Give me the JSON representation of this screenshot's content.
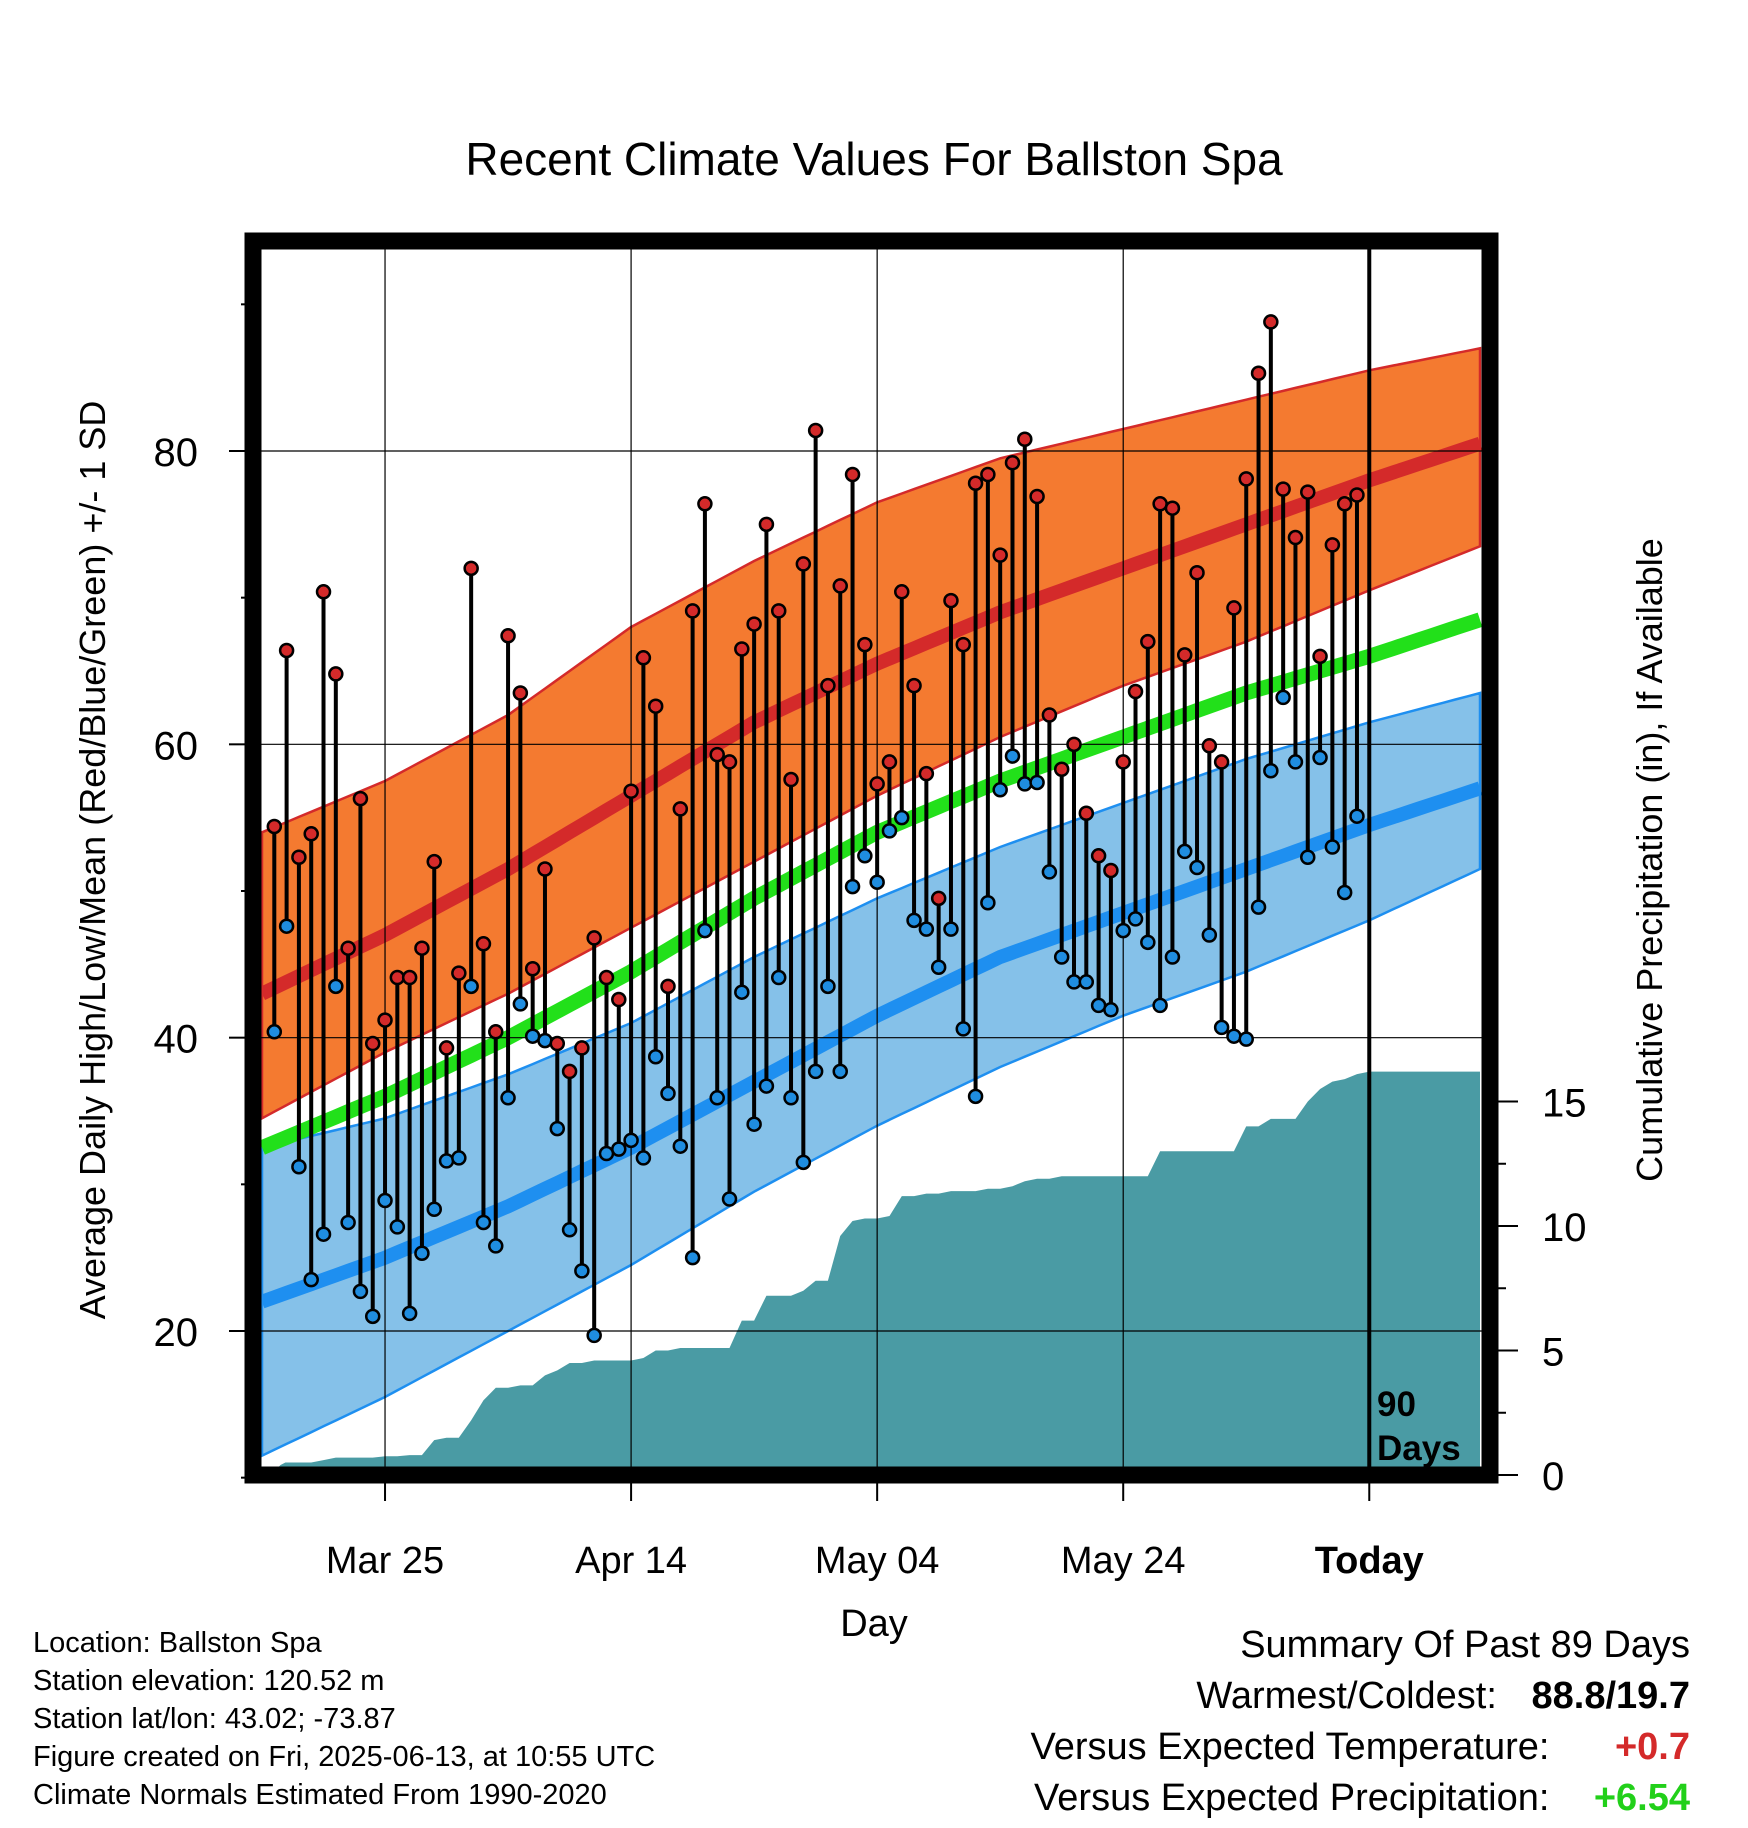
{
  "title": "Recent Climate Values For Ballston Spa",
  "axes": {
    "ylabel_left": "Average Daily High/Low/Mean (Red/Blue/Green) +/- 1 SD",
    "ylabel_right": "Cumulative Precipitation (in), If Available",
    "xlabel": "Day",
    "today_marker_label_1": "90",
    "today_marker_label_2": "Days"
  },
  "info": {
    "location": "Location: Ballston Spa",
    "elevation": "Station elevation: 120.52 m",
    "latlon": "Station lat/lon: 43.02; -73.87",
    "created": "Figure created on Fri, 2025-06-13, at 10:55 UTC",
    "normals": "Climate Normals Estimated From 1990-2020"
  },
  "summary": {
    "heading": "Summary Of Past 89 Days",
    "warm_cold_label": "Warmest/Coldest:",
    "warmest": "88.8",
    "slash": "/",
    "coldest": "19.7",
    "temp_label": "Versus Expected Temperature:",
    "temp_value": "+0.7",
    "precip_label": "Versus Expected Precipitation:",
    "precip_value": "+6.54"
  },
  "colors": {
    "high_band": "#f47a30",
    "high_mean": "#d42a2a",
    "low_band": "#85c1e9",
    "low_mean": "#1e8ff0",
    "mean_line": "#22e01a",
    "precip_fill": "#4a9ba4",
    "high_dot": "#d42a2a",
    "low_dot": "#1f8de0",
    "temp_anomaly": "#d42a2a",
    "precip_anomaly": "#22d01a"
  },
  "chart_data": {
    "type": "line",
    "x_day_range": [
      -90,
      9
    ],
    "ylim_left": [
      9,
      95
    ],
    "ylim_right": [
      0,
      33
    ],
    "x_ticks": [
      {
        "day": -80,
        "label": "Mar 25"
      },
      {
        "day": -60,
        "label": "Apr 14"
      },
      {
        "day": -40,
        "label": "May 04"
      },
      {
        "day": -20,
        "label": "May 24"
      },
      {
        "day": 0,
        "label": "Today"
      }
    ],
    "y_ticks_left": [
      20,
      40,
      60,
      80
    ],
    "y_ticks_right": [
      0,
      5,
      10,
      15
    ],
    "normals": {
      "days": [
        -90,
        -80,
        -70,
        -60,
        -50,
        -40,
        -30,
        -20,
        -10,
        0,
        9
      ],
      "high_mean": [
        43.0,
        47.0,
        51.5,
        56.5,
        61.5,
        65.5,
        69.0,
        72.0,
        75.0,
        78.0,
        80.5
      ],
      "high_plus_sd": [
        54.0,
        57.5,
        62.0,
        68.0,
        72.5,
        76.5,
        79.5,
        81.5,
        83.5,
        85.5,
        87.0
      ],
      "high_minus_sd": [
        34.5,
        39.0,
        43.0,
        47.5,
        52.0,
        56.5,
        60.5,
        64.0,
        67.0,
        70.5,
        73.5
      ],
      "mean": [
        32.5,
        36.0,
        40.0,
        44.5,
        49.5,
        54.0,
        57.5,
        60.5,
        63.5,
        66.0,
        68.5
      ],
      "low_mean": [
        22.0,
        25.0,
        28.5,
        32.5,
        37.0,
        41.5,
        45.5,
        48.5,
        51.5,
        54.5,
        57.0
      ],
      "low_plus_sd": [
        32.5,
        34.5,
        37.5,
        41.0,
        45.5,
        49.5,
        53.0,
        56.0,
        59.0,
        61.5,
        63.5
      ],
      "low_minus_sd": [
        11.5,
        15.5,
        20.0,
        24.5,
        29.5,
        34.0,
        38.0,
        41.5,
        44.5,
        48.0,
        51.5
      ]
    },
    "observed_start_day": -89,
    "daily_high": [
      54.4,
      66.4,
      52.3,
      53.9,
      70.4,
      64.8,
      46.1,
      56.3,
      39.6,
      41.2,
      44.1,
      44.1,
      46.1,
      52.0,
      39.3,
      44.4,
      72.0,
      46.4,
      40.4,
      67.4,
      63.5,
      44.7,
      51.5,
      39.6,
      37.7,
      39.3,
      46.8,
      44.1,
      42.6,
      56.8,
      65.9,
      62.6,
      43.5,
      55.6,
      69.1,
      76.4,
      59.3,
      58.8,
      66.5,
      68.2,
      75.0,
      69.1,
      57.6,
      72.3,
      81.4,
      64.0,
      70.8,
      78.4,
      66.8,
      57.3,
      58.8,
      70.4,
      64.0,
      58.0,
      49.5,
      69.8,
      66.8,
      77.8,
      78.4,
      72.9,
      79.2,
      80.8,
      76.9,
      62.0,
      58.3,
      60.0,
      55.3,
      52.4,
      51.4,
      58.8,
      63.6,
      67.0,
      76.4,
      76.1,
      66.1,
      71.7,
      59.9,
      58.8,
      69.3,
      78.1,
      85.3,
      88.8,
      77.4,
      74.1,
      77.2,
      66.0,
      73.6,
      76.4,
      77.0
    ],
    "daily_low": [
      40.4,
      47.6,
      31.2,
      23.5,
      26.6,
      43.5,
      27.4,
      22.7,
      21.0,
      28.9,
      27.1,
      21.2,
      25.3,
      28.3,
      31.6,
      31.8,
      43.5,
      27.4,
      25.8,
      35.9,
      42.3,
      40.1,
      39.8,
      33.8,
      26.9,
      24.1,
      19.7,
      32.1,
      32.4,
      33.0,
      31.8,
      38.7,
      36.2,
      32.6,
      25.0,
      47.3,
      35.9,
      29.0,
      43.1,
      34.1,
      36.7,
      44.1,
      35.9,
      31.5,
      37.7,
      43.5,
      37.7,
      50.3,
      52.4,
      50.6,
      54.1,
      55.0,
      48.0,
      47.4,
      44.8,
      47.4,
      40.6,
      36.0,
      49.2,
      56.9,
      59.2,
      57.3,
      57.4,
      51.3,
      45.5,
      43.8,
      43.8,
      42.2,
      41.9,
      47.3,
      48.1,
      46.5,
      42.2,
      45.5,
      52.7,
      51.6,
      47.0,
      40.7,
      40.1,
      39.9,
      48.9,
      58.2,
      63.2,
      58.8,
      52.3,
      59.1,
      53.0,
      49.9,
      55.1
    ],
    "cumulative_precip": {
      "days": [
        -89.3,
        -88.5,
        -88.1,
        -87,
        -86,
        -85,
        -84,
        -83,
        -82,
        -81,
        -80,
        -79,
        -78,
        -77,
        -76,
        -75,
        -74,
        -73,
        -72,
        -71,
        -70,
        -69,
        -68,
        -67,
        -66,
        -65,
        -64,
        -63,
        -62,
        -61,
        -60,
        -59,
        -58,
        -57,
        -56,
        -55,
        -54,
        -53,
        -52,
        -51,
        -50,
        -49,
        -48,
        -47,
        -46,
        -45,
        -44,
        -43,
        -42,
        -41,
        -40,
        -39,
        -38,
        -37,
        -36,
        -35,
        -34,
        -33,
        -32,
        -31,
        -30,
        -29,
        -28,
        -27,
        -26,
        -25,
        -24,
        -23,
        -22,
        -21,
        -20,
        -19,
        -18,
        -17,
        -16,
        -15,
        -14,
        -13,
        -12,
        -11,
        -10,
        -9,
        -8,
        -7,
        -6,
        -5,
        -4,
        -3,
        -2,
        -1,
        0,
        1,
        9
      ],
      "values": [
        0.0,
        0.4,
        0.5,
        0.5,
        0.5,
        0.6,
        0.7,
        0.7,
        0.7,
        0.7,
        0.75,
        0.75,
        0.8,
        0.8,
        1.4,
        1.5,
        1.5,
        2.2,
        3.0,
        3.5,
        3.5,
        3.6,
        3.6,
        4.0,
        4.2,
        4.5,
        4.5,
        4.6,
        4.6,
        4.6,
        4.6,
        4.7,
        5.0,
        5.0,
        5.1,
        5.1,
        5.1,
        5.1,
        5.1,
        6.2,
        6.2,
        7.2,
        7.2,
        7.2,
        7.4,
        7.8,
        7.8,
        9.6,
        10.2,
        10.3,
        10.3,
        10.4,
        11.2,
        11.2,
        11.3,
        11.3,
        11.4,
        11.4,
        11.4,
        11.5,
        11.5,
        11.6,
        11.8,
        11.9,
        11.9,
        12.0,
        12.0,
        12.0,
        12.0,
        12.0,
        12.0,
        12.0,
        12.0,
        13.0,
        13.0,
        13.0,
        13.0,
        13.0,
        13.0,
        13.0,
        14.0,
        14.0,
        14.3,
        14.3,
        14.3,
        15.0,
        15.5,
        15.8,
        15.9,
        16.1,
        16.2,
        16.2,
        16.2
      ]
    }
  }
}
